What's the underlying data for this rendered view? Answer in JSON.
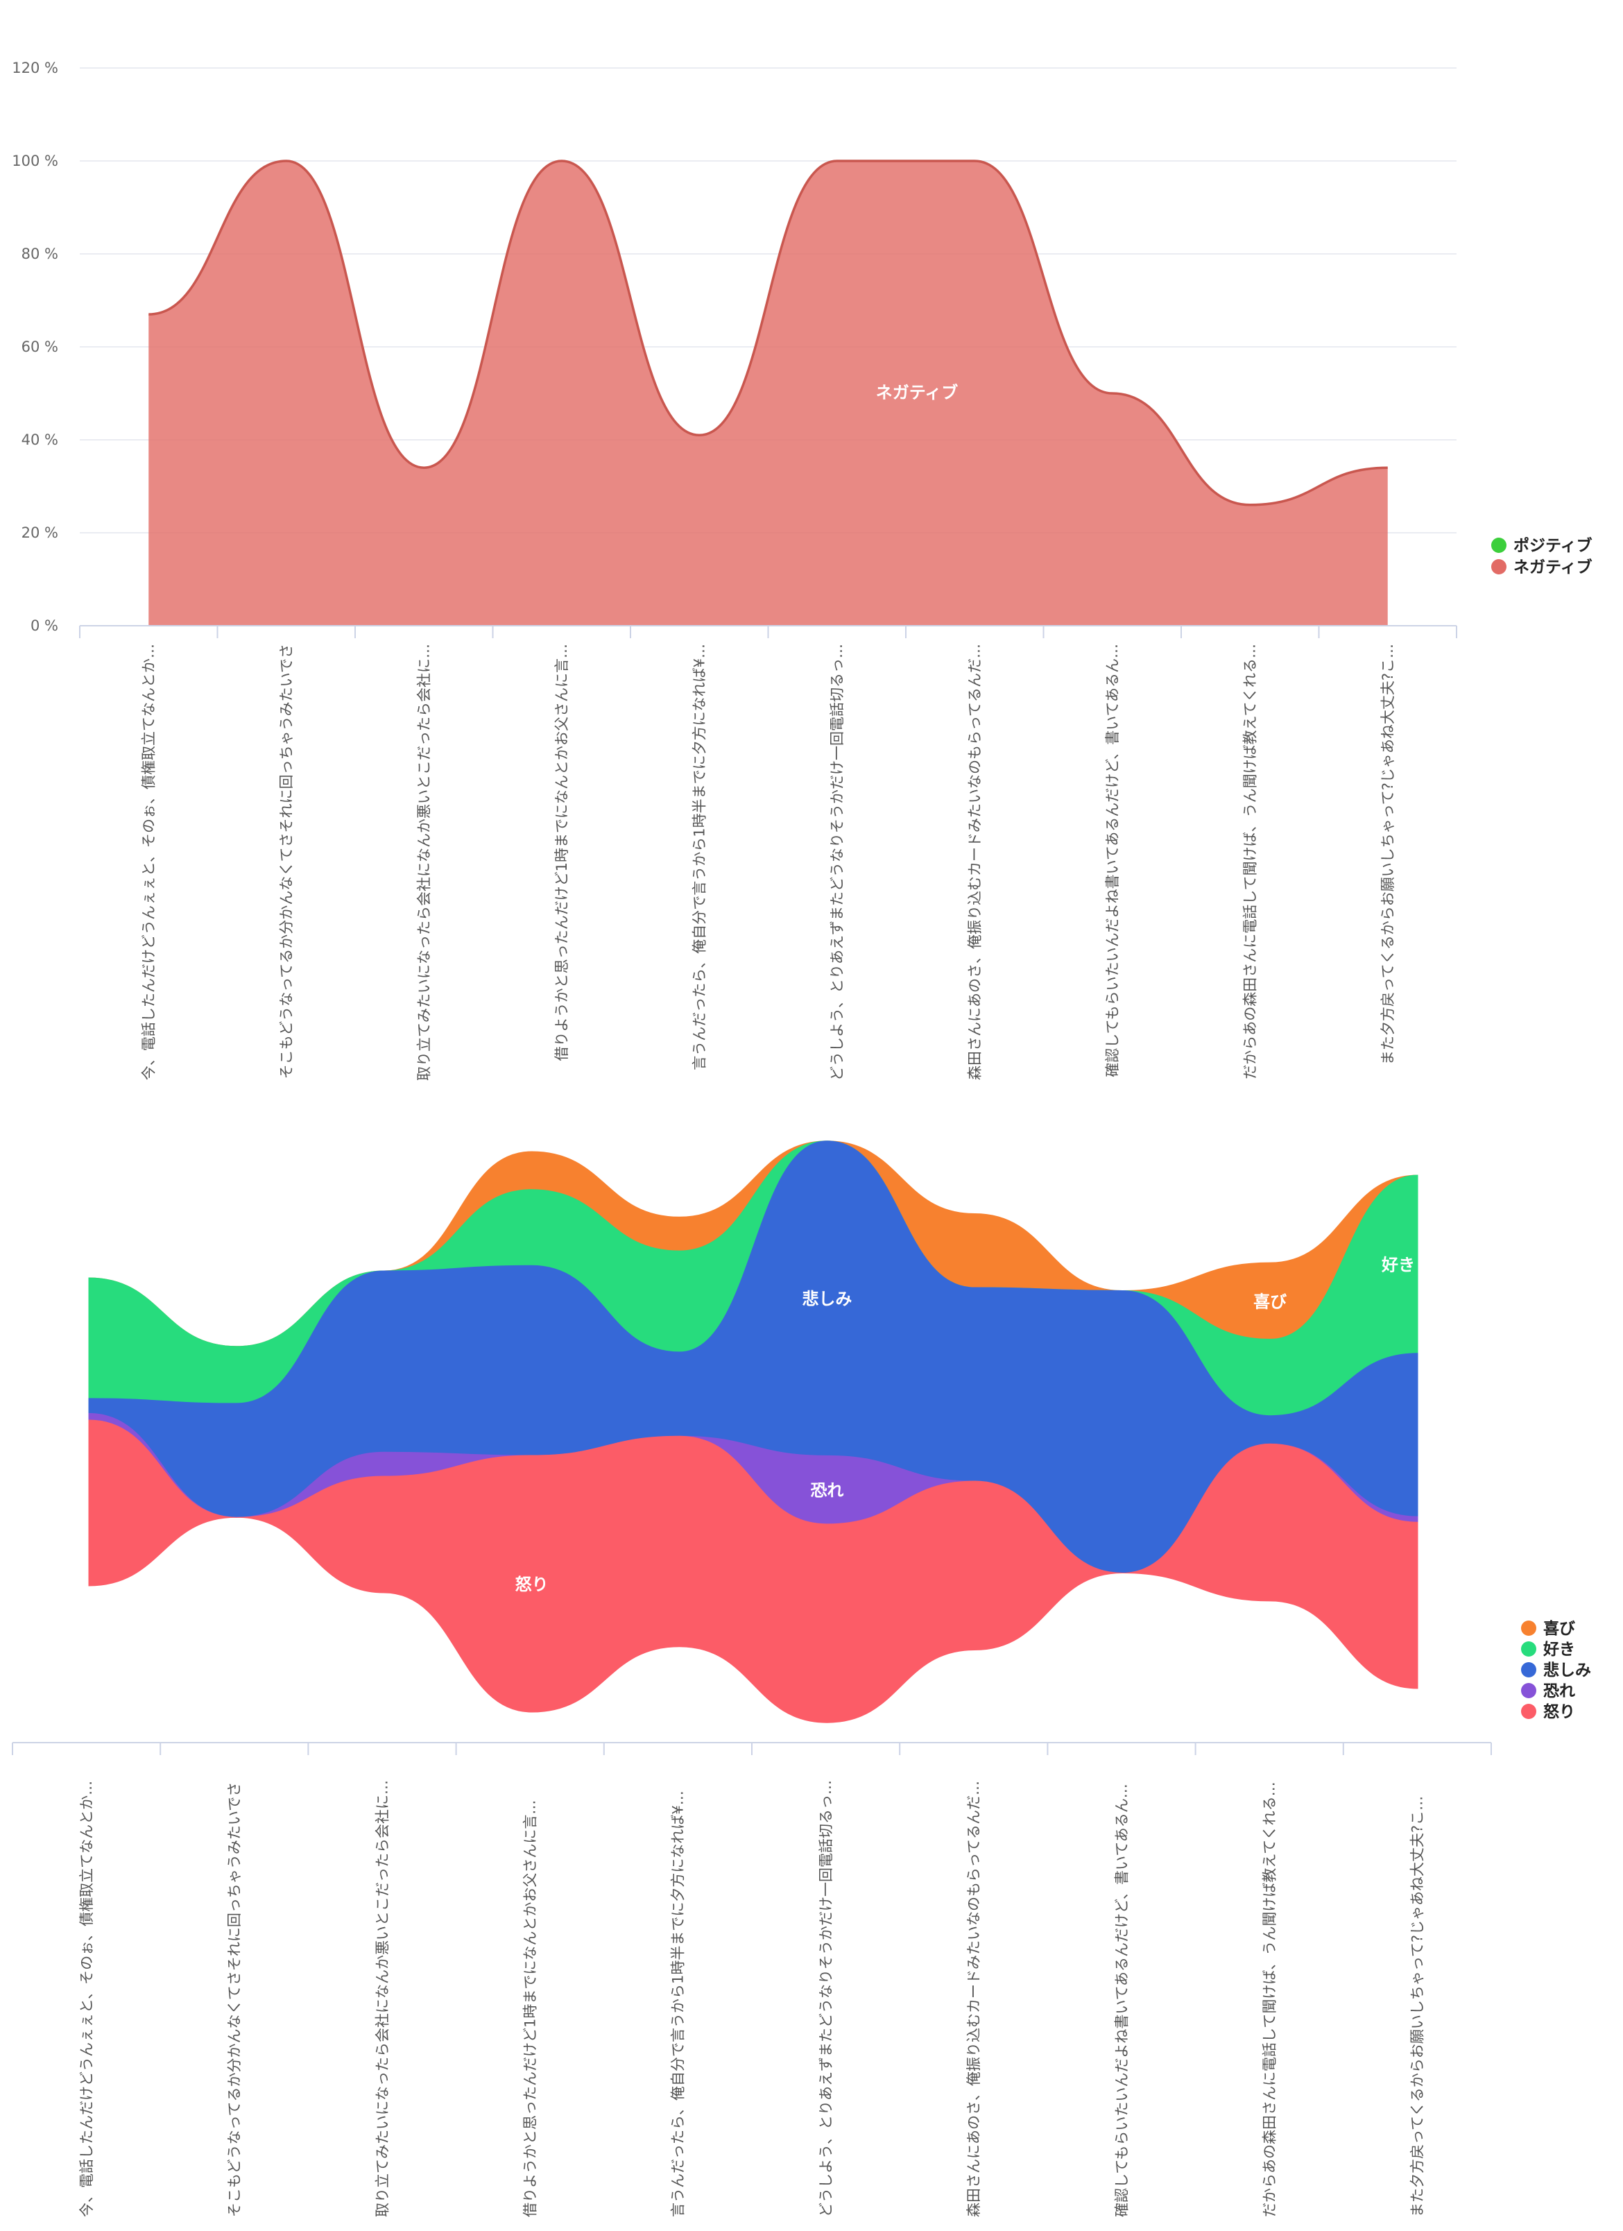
{
  "chart_data": [
    {
      "type": "area",
      "categories": [
        "今、電話したんだけどうんぇぇと、そのぉ、債権取立てなんとか…",
        "そこもどうなってるか分かんなくてさそれに回っちゃうみたいでさ",
        "取り立てみたいになったら会社になんか悪いとこだったら会社に…",
        "借りようかと思ったんだけど1時までになんとかお父さんに言…",
        "言うんだったら、俺自分で言うから1時半までに夕方になれば¥…",
        "どうしよう、とりあえずまたどうなりそうかだけ一回電話切るっ…",
        "森田さんにあのさ、俺振り込むカードみたいなのもらってるんだ…",
        "確認してもらいたいんだよね書いてあるんだけど、書いてあるん…",
        "だからあの森田さんに電話して聞けば、うん聞けば教えてくれる…",
        "また夕方戻ってくるからお願いしちゃって?じゃあね大丈夫?こ…"
      ],
      "series": [
        {
          "name": "ポジティブ",
          "color": "#3ccf3c",
          "values": [
            0,
            0,
            0,
            0,
            0,
            0,
            0,
            0,
            0,
            0
          ]
        },
        {
          "name": "ネガティブ",
          "color": "#e26b65",
          "values": [
            67,
            100,
            34,
            100,
            41,
            100,
            100,
            50,
            26,
            34
          ]
        }
      ],
      "ylim": [
        0,
        120
      ],
      "yticks": [
        0,
        20,
        40,
        60,
        80,
        100,
        120
      ],
      "ytick_suffix": " %",
      "grid": true,
      "legend": "right",
      "annotation": "ネガティブ"
    },
    {
      "type": "area",
      "stream": true,
      "categories": [
        "今、電話したんだけどうんぇぇと、そのぉ、債権取立てなんとか…",
        "そこもどうなってるか分かんなくてさそれに回っちゃうみたいでさ",
        "取り立てみたいになったら会社になんか悪いとこだったら会社に…",
        "借りようかと思ったんだけど1時までになんとかお父さんに言…",
        "言うんだったら、俺自分で言うから1時半までに夕方になれば¥…",
        "どうしよう、とりあえずまたどうなりそうかだけ一回電話切るっ…",
        "森田さんにあのさ、俺振り込むカードみたいなのもらってるんだ…",
        "確認してもらいたいんだよね書いてあるんだけど、書いてあるん…",
        "だからあの森田さんに電話して聞けば、うん聞けば教えてくれる…",
        "また夕方戻ってくるからお願いしちゃって?じゃあね大丈夫?こ…"
      ],
      "series": [
        {
          "name": "喜び",
          "color": "#f7812f",
          "label": "喜び",
          "values": [
            0,
            0,
            0,
            0.074,
            0.066,
            0,
            0.144,
            0,
            0.149,
            0
          ]
        },
        {
          "name": "好き",
          "color": "#27dc7d",
          "label": "好き",
          "values": [
            0.235,
            0.111,
            0,
            0.148,
            0.197,
            0,
            0,
            0,
            0.149,
            0.347
          ]
        },
        {
          "name": "悲しみ",
          "color": "#3668d7",
          "label": "悲しみ",
          "values": [
            0.029,
            0.222,
            0.353,
            0.37,
            0.164,
            0.613,
            0.377,
            0.55,
            0.055,
            0.318
          ]
        },
        {
          "name": "恐れ",
          "color": "#8652d8",
          "label": "恐れ",
          "values": [
            0.013,
            0,
            0.047,
            0,
            0,
            0.133,
            0,
            0,
            0,
            0.011
          ]
        },
        {
          "name": "怒り",
          "color": "#fc5c67",
          "label": "怒り",
          "values": [
            0.323,
            0,
            0.227,
            0.5,
            0.41,
            0.387,
            0.329,
            0,
            0.306,
            0.324
          ]
        }
      ],
      "legend": "right"
    }
  ]
}
